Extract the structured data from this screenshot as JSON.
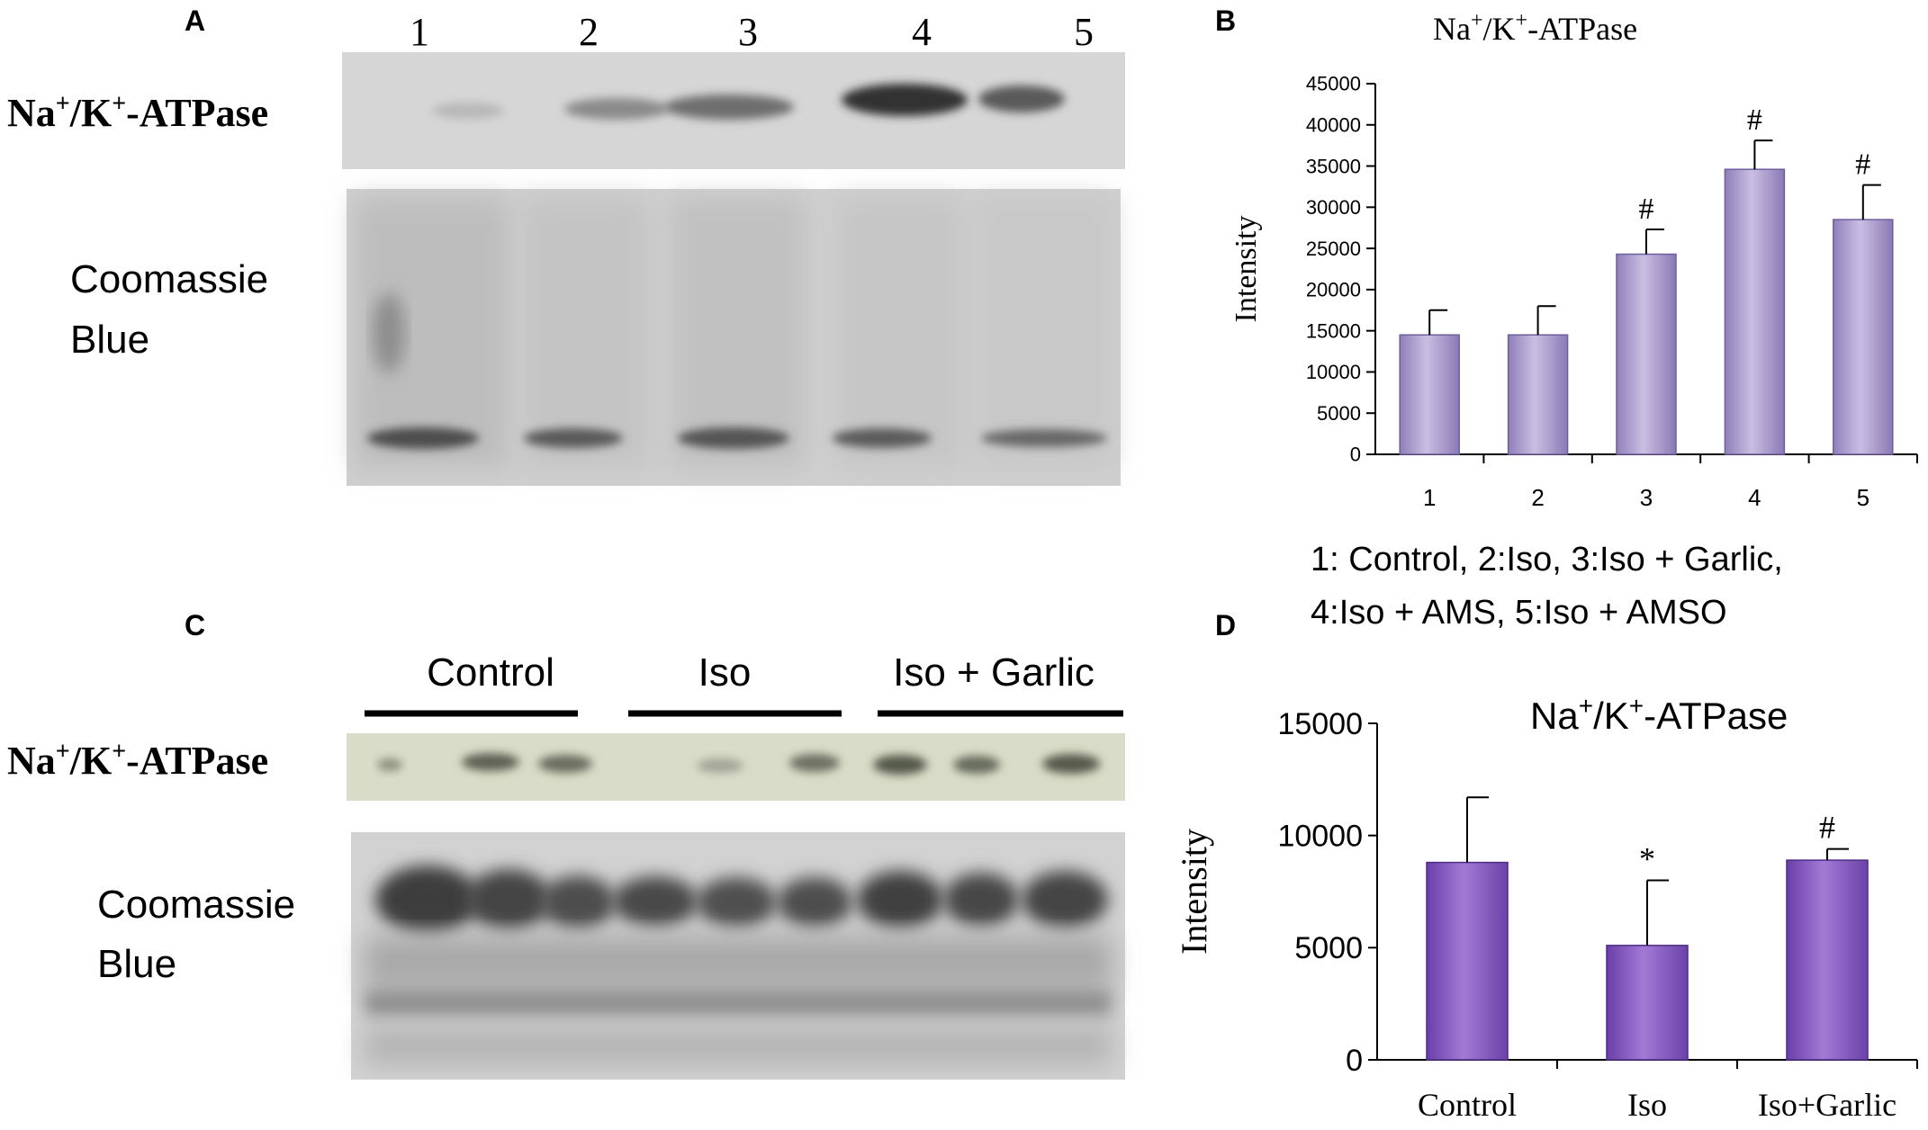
{
  "panels": {
    "A": {
      "letter": "A",
      "lane_numbers": [
        "1",
        "2",
        "3",
        "4",
        "5"
      ],
      "row_labels": {
        "protein_main": "Na",
        "protein_sup1": "+",
        "protein_mid": "/K",
        "protein_sup2": "+",
        "protein_tail": "-ATPase",
        "stain_line1": "Coomassie",
        "stain_line2": "Blue"
      }
    },
    "B": {
      "letter": "B"
    },
    "C": {
      "letter": "C",
      "groups": [
        "Control",
        "Iso",
        "Iso + Garlic"
      ],
      "row_labels": {
        "protein_main": "Na",
        "protein_sup1": "+",
        "protein_mid": "/K",
        "protein_sup2": "+",
        "protein_tail": "-ATPase",
        "stain_line1": "Coomassie",
        "stain_line2": "Blue"
      }
    },
    "D": {
      "letter": "D"
    }
  },
  "legend_text": {
    "line1": "1: Control,  2:Iso, 3:Iso + Garlic,",
    "line2": "4:Iso + AMS, 5:Iso + AMSO"
  },
  "chart_data": [
    {
      "panel": "B",
      "type": "bar",
      "title_parts": {
        "main": "Na",
        "sup1": "+",
        "mid": "/K",
        "sup2": "+",
        "tail": "-ATPase"
      },
      "categories": [
        "1",
        "2",
        "3",
        "4",
        "5"
      ],
      "values": [
        14500,
        14500,
        24300,
        34600,
        28500
      ],
      "errors": [
        3000,
        3500,
        3000,
        3500,
        4200
      ],
      "annotations": [
        "",
        "",
        "#",
        "#",
        "#"
      ],
      "ylabel": "Intensity",
      "xlabel": "",
      "ylim": [
        0,
        45000
      ],
      "yticks": [
        0,
        5000,
        10000,
        15000,
        20000,
        25000,
        30000,
        35000,
        40000,
        45000
      ],
      "bar_color": "#a899cc",
      "grid": false
    },
    {
      "panel": "D",
      "type": "bar",
      "title_parts": {
        "main": "Na",
        "sup1": "+",
        "mid": "/K",
        "sup2": "+",
        "tail": "-ATPase"
      },
      "categories": [
        "Control",
        "Iso",
        "Iso+Garlic"
      ],
      "values": [
        8800,
        5100,
        8900
      ],
      "errors": [
        2900,
        2900,
        500
      ],
      "annotations": [
        "",
        "*",
        "#"
      ],
      "ylabel": "Intensity",
      "xlabel": "",
      "ylim": [
        0,
        15000
      ],
      "yticks": [
        0,
        5000,
        10000,
        15000
      ],
      "bar_color": "#8a5fc0",
      "grid": false
    }
  ]
}
